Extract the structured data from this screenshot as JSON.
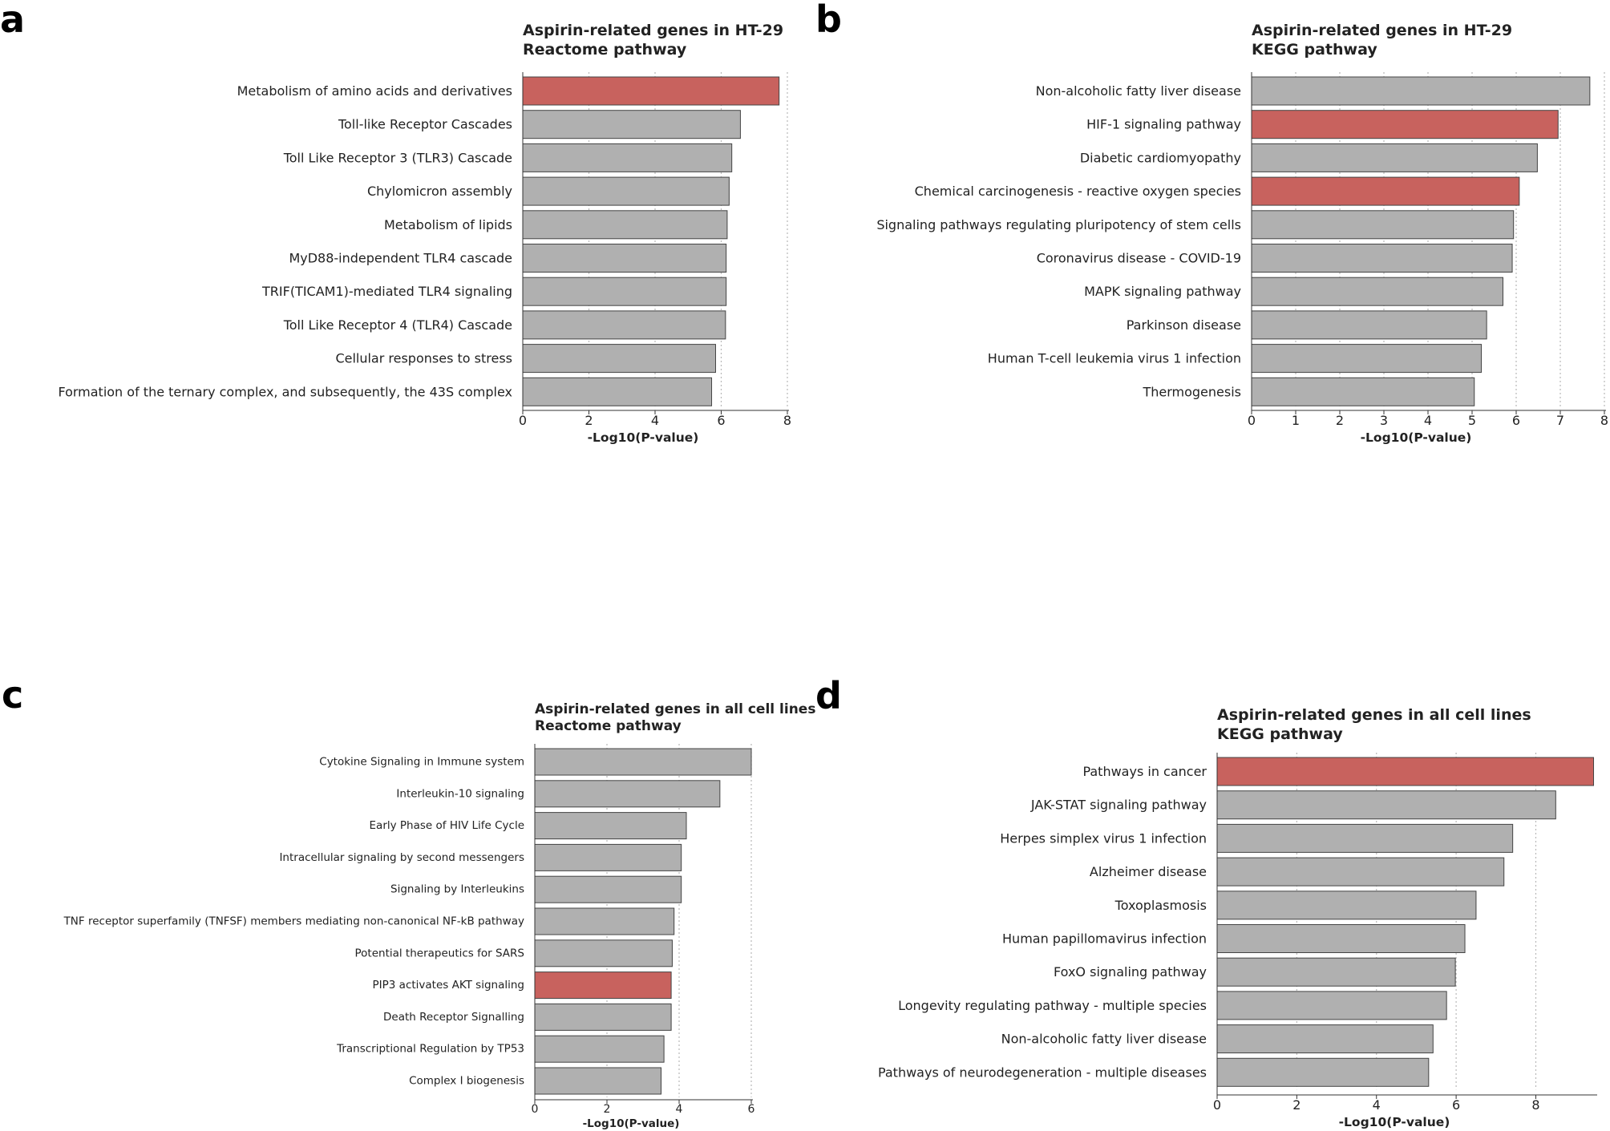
{
  "colors": {
    "default_bar": "#b0b0b0",
    "highlight_bar": "#c8625e"
  },
  "chart_data": [
    {
      "panel": "a",
      "type": "bar",
      "orientation": "horizontal",
      "title": [
        "Aspirin-related genes in HT-29",
        "Reactome pathway"
      ],
      "xlabel": "-Log10(P-value)",
      "xlim": [
        0,
        8
      ],
      "xticks": [
        0,
        2,
        4,
        6,
        8
      ],
      "grid": "vertical-dotted",
      "categories": [
        "Metabolism of amino acids and derivatives",
        "Toll-like Receptor Cascades",
        "Toll Like Receptor 3 (TLR3) Cascade",
        "Chylomicron assembly",
        "Metabolism of lipids",
        "MyD88-independent TLR4 cascade",
        "TRIF(TICAM1)-mediated TLR4 signaling",
        "Toll Like Receptor 4 (TLR4) Cascade",
        "Cellular responses to stress",
        "Formation of the ternary complex, and subsequently, the 43S complex"
      ],
      "values": [
        7.75,
        6.58,
        6.32,
        6.24,
        6.18,
        6.15,
        6.15,
        6.13,
        5.83,
        5.71
      ],
      "highlighted": [
        0
      ]
    },
    {
      "panel": "b",
      "type": "bar",
      "orientation": "horizontal",
      "title": [
        "Aspirin-related genes in HT-29",
        "KEGG pathway"
      ],
      "xlabel": "-Log10(P-value)",
      "xlim": [
        0,
        8
      ],
      "xticks": [
        0,
        1,
        2,
        3,
        4,
        5,
        6,
        7,
        8
      ],
      "grid": "vertical-dotted",
      "categories": [
        "Non-alcoholic fatty liver disease",
        "HIF-1 signaling pathway",
        "Diabetic cardiomyopathy",
        "Chemical carcinogenesis - reactive oxygen species",
        "Signaling pathways regulating pluripotency of stem cells",
        "Coronavirus disease - COVID-19",
        "MAPK signaling pathway",
        "Parkinson disease",
        "Human T-cell leukemia virus 1 infection",
        "Thermogenesis"
      ],
      "values": [
        7.67,
        6.95,
        6.48,
        6.07,
        5.94,
        5.91,
        5.7,
        5.33,
        5.21,
        5.05
      ],
      "highlighted": [
        1,
        3
      ]
    },
    {
      "panel": "c",
      "type": "bar",
      "orientation": "horizontal",
      "title": [
        "Aspirin-related genes in all cell lines",
        "Reactome pathway"
      ],
      "xlabel": "-Log10(P-value)",
      "xlim": [
        0,
        6
      ],
      "xticks": [
        0,
        2,
        4,
        6
      ],
      "grid": "vertical-dotted",
      "categories": [
        "Cytokine Signaling in Immune system",
        "Interleukin-10 signaling",
        "Early Phase of HIV Life Cycle",
        "Intracellular signaling by second messengers",
        "Signaling by Interleukins",
        "TNF receptor superfamily (TNFSF) members mediating non-canonical NF-kB pathway",
        "Potential therapeutics for SARS",
        "PIP3 activates AKT signaling",
        "Death Receptor Signalling",
        "Transcriptional Regulation by TP53",
        "Complex I biogenesis"
      ],
      "values": [
        6.0,
        5.13,
        4.2,
        4.06,
        4.06,
        3.86,
        3.81,
        3.78,
        3.78,
        3.58,
        3.5
      ],
      "highlighted": [
        7
      ]
    },
    {
      "panel": "d",
      "type": "bar",
      "orientation": "horizontal",
      "title": [
        "Aspirin-related genes in all cell lines",
        "KEGG pathway"
      ],
      "xlabel": "-Log10(P-value)",
      "xlim": [
        0,
        9.5
      ],
      "xticks": [
        0,
        2,
        4,
        6,
        8
      ],
      "grid": "vertical-dotted",
      "categories": [
        "Pathways in cancer",
        "JAK-STAT signaling pathway",
        "Herpes simplex virus 1 infection",
        "Alzheimer disease",
        "Toxoplasmosis",
        "Human papillomavirus infection",
        "FoxO signaling pathway",
        "Longevity regulating pathway - multiple species",
        "Non-alcoholic fatty liver disease",
        "Pathways of neurodegeneration - multiple diseases"
      ],
      "values": [
        9.45,
        8.5,
        7.42,
        7.2,
        6.5,
        6.22,
        5.98,
        5.76,
        5.42,
        5.31
      ],
      "highlighted": [
        0
      ]
    }
  ]
}
